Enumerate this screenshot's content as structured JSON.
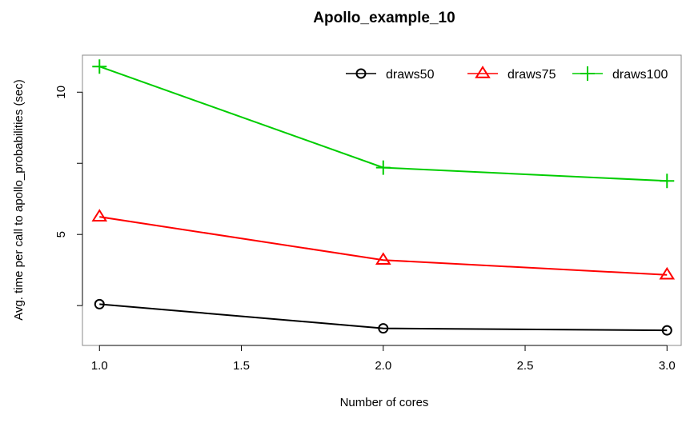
{
  "chart_data": {
    "type": "line",
    "title": "Apollo_example_10",
    "xlabel": "Number of cores",
    "ylabel": "Avg. time per call to apollo_probabilities (sec)",
    "x": [
      1.0,
      2.0,
      3.0
    ],
    "xlim": [
      0.94,
      3.05
    ],
    "ylim": [
      1.1,
      11.3
    ],
    "xticks": [
      "1.0",
      "1.5",
      "2.0",
      "2.5",
      "3.0"
    ],
    "yticks": [
      "5",
      "10"
    ],
    "grid": false,
    "legend_position": "top-right",
    "series": [
      {
        "name": "draws50",
        "values": [
          2.55,
          1.7,
          1.63
        ],
        "color": "#000000",
        "marker": "circle"
      },
      {
        "name": "draws75",
        "values": [
          5.62,
          4.1,
          3.58
        ],
        "color": "#ff0000",
        "marker": "triangle"
      },
      {
        "name": "draws100",
        "values": [
          10.9,
          7.35,
          6.88
        ],
        "color": "#00cd00",
        "marker": "plus"
      }
    ]
  }
}
